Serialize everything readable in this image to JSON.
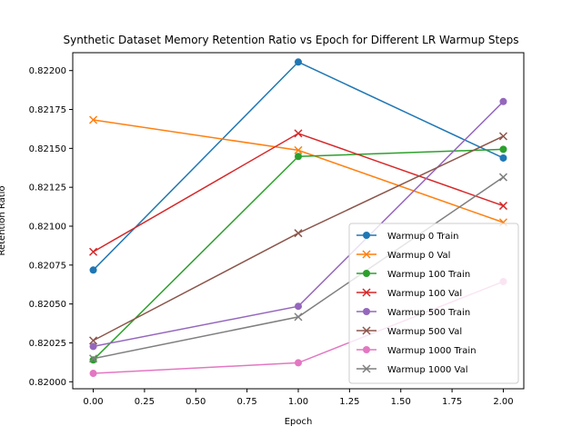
{
  "chart_data": {
    "type": "line",
    "title": "Synthetic Dataset Memory Retention Ratio vs Epoch for Different LR Warmup Steps",
    "xlabel": "Epoch",
    "ylabel": "Retention Ratio",
    "xlim": [
      -0.1,
      2.1
    ],
    "ylim": [
      0.819955,
      0.822115
    ],
    "xticks": [
      0.0,
      0.25,
      0.5,
      0.75,
      1.0,
      1.25,
      1.5,
      1.75,
      2.0
    ],
    "xtick_labels": [
      "0.00",
      "0.25",
      "0.50",
      "0.75",
      "1.00",
      "1.25",
      "1.50",
      "1.75",
      "2.00"
    ],
    "yticks": [
      0.82,
      0.82025,
      0.8205,
      0.82075,
      0.821,
      0.82125,
      0.8215,
      0.82175,
      0.822
    ],
    "ytick_labels": [
      "0.82000",
      "0.82025",
      "0.82050",
      "0.82075",
      "0.82100",
      "0.82125",
      "0.82150",
      "0.82175",
      "0.82200"
    ],
    "grid": false,
    "legend_position": "lower-right",
    "x": [
      0,
      1,
      2
    ],
    "series": [
      {
        "name": "Warmup 0 Train",
        "values": [
          0.820718,
          0.822055,
          0.821438
        ],
        "color": "#1f77b4",
        "marker": "circle"
      },
      {
        "name": "Warmup 0 Val",
        "values": [
          0.821683,
          0.821488,
          0.821024
        ],
        "color": "#ff7f0e",
        "marker": "x"
      },
      {
        "name": "Warmup 100 Train",
        "values": [
          0.82014,
          0.821448,
          0.821494
        ],
        "color": "#2ca02c",
        "marker": "circle"
      },
      {
        "name": "Warmup 100 Val",
        "values": [
          0.820835,
          0.821596,
          0.821131
        ],
        "color": "#d62728",
        "marker": "x"
      },
      {
        "name": "Warmup 500 Train",
        "values": [
          0.820227,
          0.820485,
          0.821801
        ],
        "color": "#9467bd",
        "marker": "circle"
      },
      {
        "name": "Warmup 500 Val",
        "values": [
          0.820265,
          0.820955,
          0.821578
        ],
        "color": "#8c564b",
        "marker": "x"
      },
      {
        "name": "Warmup 1000 Train",
        "values": [
          0.820054,
          0.820122,
          0.820644
        ],
        "color": "#e377c2",
        "marker": "circle"
      },
      {
        "name": "Warmup 1000 Val",
        "values": [
          0.820149,
          0.820417,
          0.821315
        ],
        "color": "#7f7f7f",
        "marker": "x"
      }
    ]
  }
}
